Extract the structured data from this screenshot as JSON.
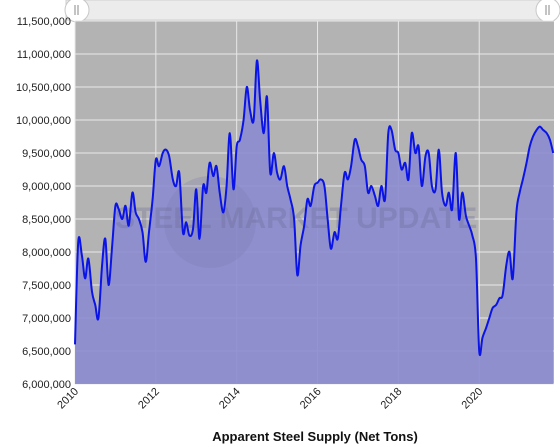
{
  "chart_data": {
    "type": "area",
    "title": "",
    "xlabel": "Apparent Steel Supply (Net Tons)",
    "ylabel": "",
    "xlim": [
      2010.0,
      2021.85
    ],
    "ylim": [
      6000000,
      11500000
    ],
    "x_ticks": [
      "2010",
      "2012",
      "2014",
      "2016",
      "2018",
      "2020"
    ],
    "y_ticks": [
      "6,000,000",
      "6,500,000",
      "7,000,000",
      "7,500,000",
      "8,000,000",
      "8,500,000",
      "9,000,000",
      "9,500,000",
      "10,000,000",
      "10,500,000",
      "11,000,000",
      "11,500,000"
    ],
    "grid": true,
    "legend": "none",
    "watermark": "STEEL MARKET UPDATE",
    "colors": {
      "line": "#0a14e6",
      "fill": "#8c8cd0",
      "plot_bg": "#b3b3b3",
      "scrollbar": "#ececec"
    },
    "series": [
      {
        "x": [
          2010.0,
          2010.08,
          2010.17,
          2010.25,
          2010.33,
          2010.42,
          2010.5,
          2010.58,
          2010.67,
          2010.75,
          2010.83,
          2010.92,
          2011.0,
          2011.08,
          2011.17,
          2011.25,
          2011.33,
          2011.42,
          2011.5,
          2011.58,
          2011.67,
          2011.75,
          2011.83,
          2011.92,
          2012.0,
          2012.08,
          2012.17,
          2012.25,
          2012.33,
          2012.42,
          2012.5,
          2012.58,
          2012.67,
          2012.75,
          2012.83,
          2012.92,
          2013.0,
          2013.08,
          2013.17,
          2013.25,
          2013.33,
          2013.42,
          2013.5,
          2013.58,
          2013.67,
          2013.75,
          2013.83,
          2013.92,
          2014.0,
          2014.08,
          2014.17,
          2014.25,
          2014.33,
          2014.42,
          2014.5,
          2014.58,
          2014.67,
          2014.75,
          2014.83,
          2014.92,
          2015.0,
          2015.08,
          2015.17,
          2015.25,
          2015.33,
          2015.42,
          2015.5,
          2015.58,
          2015.67,
          2015.75,
          2015.83,
          2015.92,
          2016.0,
          2016.08,
          2016.17,
          2016.25,
          2016.33,
          2016.42,
          2016.5,
          2016.58,
          2016.67,
          2016.75,
          2016.83,
          2016.92,
          2017.0,
          2017.08,
          2017.17,
          2017.25,
          2017.33,
          2017.42,
          2017.5,
          2017.58,
          2017.67,
          2017.75,
          2017.83,
          2017.92,
          2018.0,
          2018.08,
          2018.17,
          2018.25,
          2018.33,
          2018.42,
          2018.5,
          2018.58,
          2018.67,
          2018.75,
          2018.83,
          2018.92,
          2019.0,
          2019.08,
          2019.17,
          2019.25,
          2019.33,
          2019.42,
          2019.5,
          2019.58,
          2019.67,
          2019.75,
          2019.83,
          2019.92,
          2020.0,
          2020.08,
          2020.17,
          2020.25,
          2020.33,
          2020.42,
          2020.5,
          2020.58,
          2020.67,
          2020.75,
          2020.83,
          2020.92,
          2021.0,
          2021.08,
          2021.17,
          2021.25,
          2021.33,
          2021.42,
          2021.5,
          2021.58,
          2021.67,
          2021.75,
          2021.83
        ],
        "values": [
          6600000,
          8150000,
          7950000,
          7600000,
          7900000,
          7400000,
          7200000,
          7000000,
          7800000,
          8200000,
          7500000,
          8100000,
          8700000,
          8650000,
          8500000,
          8700000,
          8400000,
          8900000,
          8600000,
          8500000,
          8300000,
          7850000,
          8300000,
          8800000,
          9400000,
          9300000,
          9500000,
          9550000,
          9450000,
          9100000,
          9000000,
          9200000,
          8300000,
          8450000,
          8250000,
          8350000,
          8950000,
          8200000,
          9000000,
          8900000,
          9350000,
          9150000,
          9300000,
          8900000,
          8600000,
          9000000,
          9800000,
          8950000,
          9600000,
          9700000,
          10000000,
          10500000,
          10150000,
          10000000,
          10900000,
          10300000,
          9800000,
          10350000,
          9200000,
          9500000,
          9200000,
          9100000,
          9300000,
          9000000,
          8800000,
          8500000,
          7650000,
          8100000,
          8400000,
          8800000,
          8700000,
          9000000,
          9050000,
          9100000,
          9000000,
          8500000,
          8050000,
          8300000,
          8200000,
          8700000,
          9200000,
          9100000,
          9300000,
          9700000,
          9600000,
          9400000,
          9300000,
          8900000,
          9000000,
          8850000,
          8700000,
          9000000,
          8800000,
          9800000,
          9850000,
          9550000,
          9500000,
          9250000,
          9350000,
          9100000,
          9800000,
          9500000,
          9600000,
          9000000,
          9450000,
          9500000,
          9000000,
          8950000,
          9550000,
          8900000,
          8700000,
          8900000,
          8650000,
          9500000,
          8500000,
          8900000,
          8550000,
          8400000,
          8250000,
          7900000,
          6500000,
          6700000,
          6850000,
          7000000,
          7150000,
          7200000,
          7300000,
          7350000,
          7800000,
          8000000,
          7600000,
          8600000,
          8900000,
          9100000,
          9350000,
          9600000,
          9750000,
          9850000,
          9900000,
          9850000,
          9800000,
          9700000,
          9500000
        ]
      }
    ]
  }
}
